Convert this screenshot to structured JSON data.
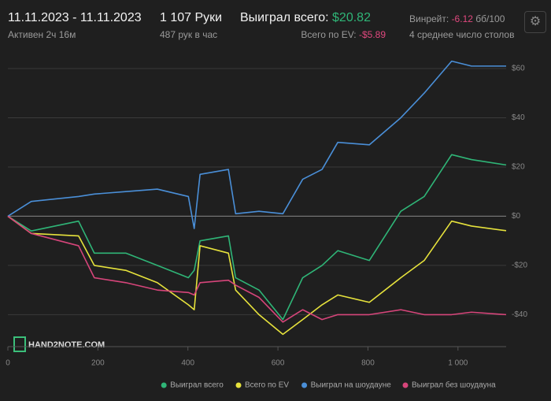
{
  "header": {
    "date_range": "11.11.2023 - 11.11.2023",
    "active": "Активен 2ч 16м",
    "hands": "1 107 Руки",
    "hands_per_hour": "487 рук в час",
    "won_label": "Выиграл всего:",
    "won_value": "$20.82",
    "ev_label": "Всего по EV:",
    "ev_value": "-$5.89",
    "winrate_label": "Винрейт:",
    "winrate_value": "-6.12",
    "winrate_unit": "бб/100",
    "tables": "4 среднее число столов"
  },
  "watermark": "HAND2NOTE.COM",
  "chart_data": {
    "type": "line",
    "x": [
      0,
      52,
      157,
      192,
      262,
      332,
      401,
      414,
      427,
      490,
      506,
      558,
      611,
      655,
      698,
      733,
      803,
      873,
      925,
      986,
      1030,
      1107
    ],
    "series": [
      {
        "name": "Выиграл всего",
        "color": "#2fb577",
        "values": [
          0,
          -6,
          -2,
          -15,
          -15,
          -20,
          -25,
          -22,
          -10,
          -8,
          -25,
          -30,
          -42,
          -25,
          -20,
          -14,
          -18,
          2,
          8,
          25,
          23,
          20.82
        ]
      },
      {
        "name": "Всего по EV",
        "color": "#e6e23c",
        "values": [
          0,
          -7,
          -8,
          -20,
          -22,
          -27,
          -36,
          -38,
          -12,
          -15,
          -30,
          -40,
          -48,
          -42,
          -36,
          -32,
          -35,
          -25,
          -18,
          -2,
          -4,
          -5.89
        ]
      },
      {
        "name": "Выиграл на шоудауне",
        "color": "#4a8fd8",
        "values": [
          0,
          6,
          8,
          9,
          10,
          11,
          8,
          -5,
          17,
          19,
          1,
          2,
          1,
          15,
          19,
          30,
          29,
          40,
          50,
          63,
          61,
          61
        ]
      },
      {
        "name": "Выиграл без шоудауна",
        "color": "#d6457a",
        "values": [
          0,
          -7,
          -12,
          -25,
          -27,
          -30,
          -31,
          -32,
          -27,
          -26,
          -28,
          -33,
          -43,
          -38,
          -42,
          -40,
          -40,
          -38,
          -40,
          -40,
          -39,
          -40
        ]
      }
    ],
    "xlim": [
      0,
      1107
    ],
    "ylim": [
      -53,
      68
    ],
    "xticks": [
      0,
      200,
      400,
      600,
      800,
      {
        "value": 1000,
        "label": "1 000"
      }
    ],
    "yticks": [
      {
        "value": 60,
        "label": "$60"
      },
      {
        "value": 40,
        "label": "$40"
      },
      {
        "value": 20,
        "label": "$20"
      },
      {
        "value": 0,
        "label": "$0"
      },
      {
        "value": -20,
        "label": "-$20"
      },
      {
        "value": -40,
        "label": "-$40"
      }
    ],
    "grid": true,
    "legend": "bottom-right"
  }
}
